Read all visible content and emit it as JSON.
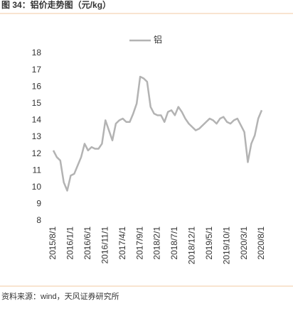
{
  "chart_data": {
    "type": "line",
    "title": "图 34：铝价走势图（元/kg）",
    "source": "资料来源：wind，天风证券研究所",
    "categories": [
      "2015/8/1",
      null,
      null,
      null,
      null,
      "2016/1/1",
      null,
      null,
      null,
      null,
      "2016/6/1",
      null,
      null,
      null,
      null,
      "2016/11/1",
      null,
      null,
      null,
      null,
      "2017/4/1",
      null,
      null,
      null,
      null,
      "2017/9/1",
      null,
      null,
      null,
      null,
      "2018/2/1",
      null,
      null,
      null,
      null,
      "2018/7/1",
      null,
      null,
      null,
      null,
      "2018/12/1",
      null,
      null,
      null,
      null,
      "2019/5/1",
      null,
      null,
      null,
      null,
      "2019/10/1",
      null,
      null,
      null,
      null,
      "2020/3/1",
      null,
      null,
      null,
      null,
      "2020/8/1"
    ],
    "series": [
      {
        "name": "铝",
        "color": "#b3b3b3",
        "values": [
          12.2,
          11.8,
          11.6,
          10.3,
          9.8,
          10.7,
          10.8,
          11.3,
          11.8,
          12.6,
          12.2,
          12.4,
          12.3,
          12.3,
          12.6,
          14.0,
          13.4,
          12.8,
          13.8,
          14.0,
          14.1,
          13.9,
          13.9,
          14.4,
          15.0,
          16.6,
          16.5,
          16.3,
          14.8,
          14.4,
          14.3,
          14.3,
          13.9,
          14.5,
          14.6,
          14.3,
          14.8,
          14.5,
          14.1,
          13.8,
          13.6,
          13.4,
          13.5,
          13.7,
          13.9,
          14.1,
          14.0,
          13.8,
          14.1,
          14.2,
          13.9,
          13.8,
          14.0,
          14.1,
          13.7,
          13.3,
          11.5,
          12.6,
          13.1,
          14.1,
          14.6
        ]
      }
    ],
    "ylim": [
      8,
      18
    ],
    "yticks": [
      8,
      9,
      10,
      11,
      12,
      13,
      14,
      15,
      16,
      17,
      18
    ],
    "legend": "top"
  }
}
